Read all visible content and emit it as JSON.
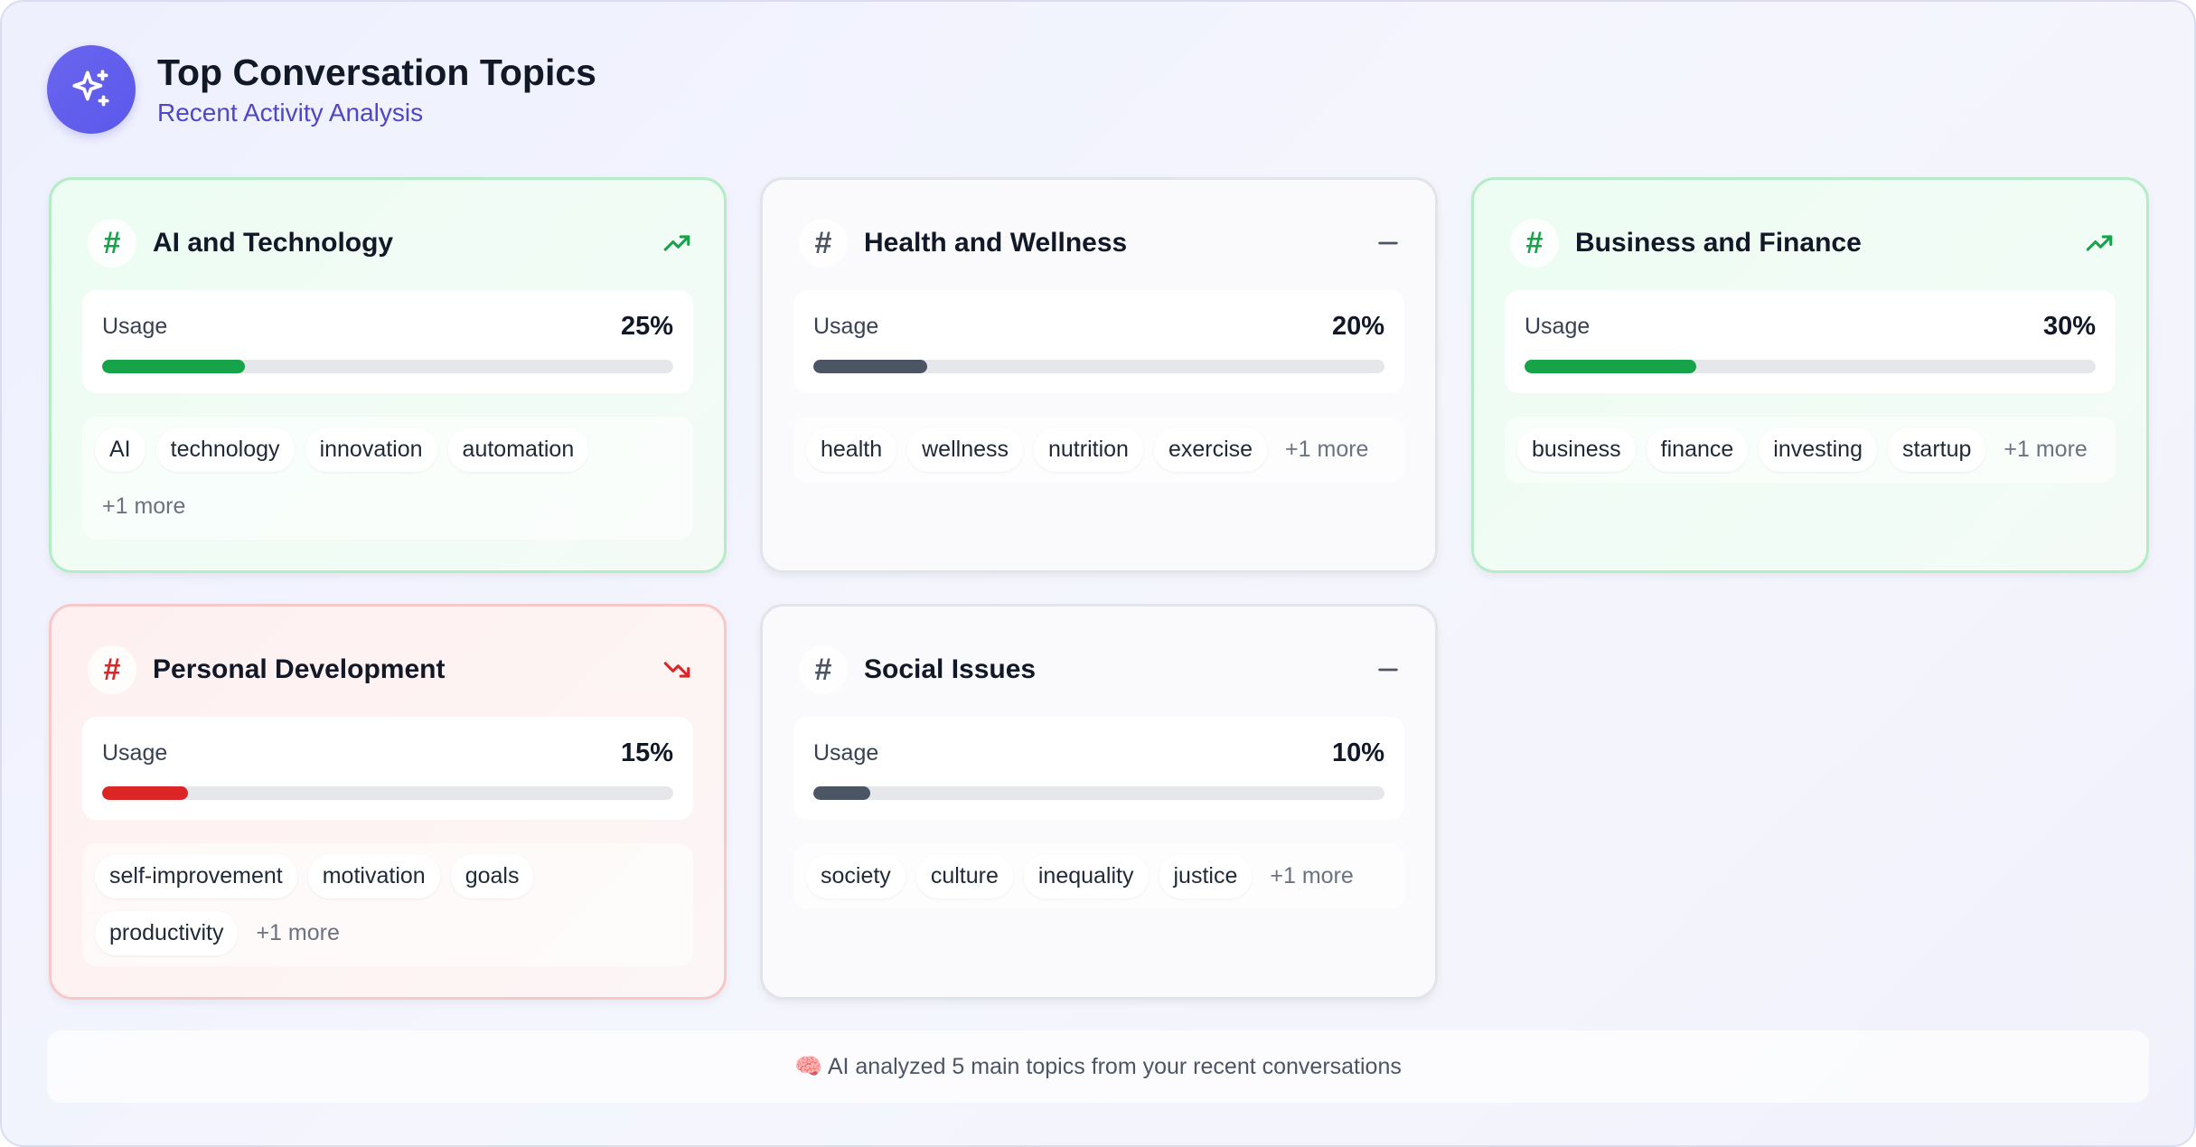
{
  "header": {
    "title": "Top Conversation Topics",
    "subtitle": "Recent Activity Analysis",
    "icon": "sparkles-icon"
  },
  "colors": {
    "accent": "#5b57ea",
    "up": "#16a34a",
    "down": "#dc2626",
    "flat": "#4b5563"
  },
  "topics": [
    {
      "name": "AI and Technology",
      "trend": "up",
      "usage_label": "Usage",
      "usage_text": "25%",
      "usage_value": 25,
      "tags": [
        "AI",
        "technology",
        "innovation",
        "automation"
      ],
      "more": "+1 more"
    },
    {
      "name": "Health and Wellness",
      "trend": "flat",
      "usage_label": "Usage",
      "usage_text": "20%",
      "usage_value": 20,
      "tags": [
        "health",
        "wellness",
        "nutrition",
        "exercise"
      ],
      "more": "+1 more"
    },
    {
      "name": "Business and Finance",
      "trend": "up",
      "usage_label": "Usage",
      "usage_text": "30%",
      "usage_value": 30,
      "tags": [
        "business",
        "finance",
        "investing",
        "startup"
      ],
      "more": "+1 more"
    },
    {
      "name": "Personal Development",
      "trend": "down",
      "usage_label": "Usage",
      "usage_text": "15%",
      "usage_value": 15,
      "tags": [
        "self-improvement",
        "motivation",
        "goals",
        "productivity"
      ],
      "more": "+1 more"
    },
    {
      "name": "Social Issues",
      "trend": "flat",
      "usage_label": "Usage",
      "usage_text": "10%",
      "usage_value": 10,
      "tags": [
        "society",
        "culture",
        "inequality",
        "justice"
      ],
      "more": "+1 more"
    }
  ],
  "footer": {
    "text": "🧠 AI analyzed 5 main topics from your recent conversations"
  }
}
